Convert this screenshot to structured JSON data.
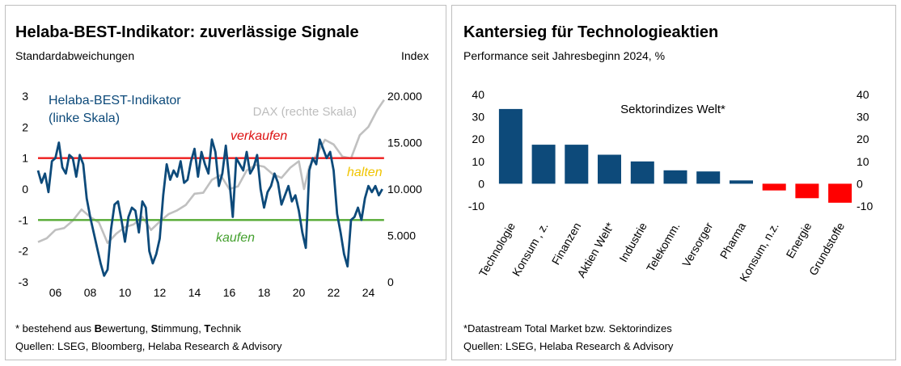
{
  "chart_data": [
    {
      "type": "line",
      "title": "Helaba-BEST-Indikator: zuverlässige Signale",
      "subtitle": "Standardabweichungen",
      "y2_unit_label": "Index",
      "xlabel": "",
      "x_ticks": [
        "06",
        "08",
        "10",
        "12",
        "14",
        "16",
        "18",
        "20",
        "22",
        "24"
      ],
      "ylim": [
        -3,
        3
      ],
      "y_ticks": [
        "3",
        "2",
        "1",
        "0",
        "-1",
        "-2",
        "-3"
      ],
      "y2lim": [
        0,
        20000
      ],
      "y2_ticks": [
        "20.000",
        "15.000",
        "10.000",
        "5.000",
        "0"
      ],
      "grid": false,
      "series": [
        {
          "name": "Helaba-BEST-Indikator (linke Skala)",
          "legend_lines": [
            "Helaba-BEST-Indikator",
            "(linke Skala)"
          ],
          "color": "#0d4a7a",
          "axis": "left",
          "x": [
            2005.0,
            2005.2,
            2005.4,
            2005.6,
            2005.8,
            2006.0,
            2006.2,
            2006.4,
            2006.6,
            2006.8,
            2007.0,
            2007.2,
            2007.4,
            2007.6,
            2007.8,
            2008.0,
            2008.2,
            2008.4,
            2008.6,
            2008.8,
            2009.0,
            2009.2,
            2009.4,
            2009.6,
            2009.8,
            2010.0,
            2010.2,
            2010.4,
            2010.6,
            2010.8,
            2011.0,
            2011.2,
            2011.4,
            2011.6,
            2011.8,
            2012.0,
            2012.2,
            2012.4,
            2012.6,
            2012.8,
            2013.0,
            2013.2,
            2013.4,
            2013.6,
            2013.8,
            2014.0,
            2014.2,
            2014.4,
            2014.6,
            2014.8,
            2015.0,
            2015.2,
            2015.4,
            2015.6,
            2015.8,
            2016.0,
            2016.2,
            2016.4,
            2016.6,
            2016.8,
            2017.0,
            2017.2,
            2017.4,
            2017.6,
            2017.8,
            2018.0,
            2018.2,
            2018.4,
            2018.6,
            2018.8,
            2019.0,
            2019.2,
            2019.4,
            2019.6,
            2019.8,
            2020.0,
            2020.2,
            2020.4,
            2020.6,
            2020.8,
            2021.0,
            2021.2,
            2021.4,
            2021.6,
            2021.8,
            2022.0,
            2022.2,
            2022.4,
            2022.6,
            2022.8,
            2023.0,
            2023.2,
            2023.4,
            2023.6,
            2023.8,
            2024.0,
            2024.2,
            2024.4,
            2024.6,
            2024.8
          ],
          "values": [
            0.6,
            0.2,
            0.5,
            -0.1,
            0.9,
            1.0,
            1.5,
            0.7,
            0.5,
            1.1,
            1.0,
            0.4,
            1.1,
            0.8,
            -0.3,
            -0.9,
            -1.4,
            -1.9,
            -2.4,
            -2.8,
            -2.6,
            -1.3,
            -0.5,
            -0.4,
            -1.0,
            -1.7,
            -0.9,
            -0.6,
            -0.7,
            -1.4,
            -0.4,
            -0.6,
            -2.0,
            -2.4,
            -2.1,
            -1.6,
            -0.2,
            0.8,
            0.3,
            0.6,
            0.4,
            0.9,
            0.2,
            0.3,
            0.9,
            1.3,
            0.4,
            1.2,
            0.8,
            0.5,
            1.6,
            1.2,
            0.1,
            0.5,
            1.4,
            0.3,
            -0.9,
            1.0,
            0.8,
            0.6,
            1.2,
            0.5,
            0.7,
            1.1,
            0.0,
            -0.6,
            -0.1,
            0.1,
            0.5,
            0.2,
            -0.5,
            -0.2,
            0.1,
            -0.4,
            -0.2,
            -0.7,
            -1.4,
            -1.9,
            0.6,
            1.0,
            0.8,
            1.6,
            1.3,
            1.0,
            1.2,
            0.6,
            -0.8,
            -1.4,
            -2.1,
            -2.5,
            -1.0,
            -0.9,
            -0.6,
            -1.0,
            -0.3,
            0.1,
            -0.1,
            0.1,
            -0.2,
            0.0
          ]
        },
        {
          "name": "DAX (rechte Skala)",
          "color": "#c0c0c0",
          "axis": "right",
          "x": [
            2005.0,
            2005.5,
            2006.0,
            2006.5,
            2007.0,
            2007.5,
            2008.0,
            2008.5,
            2009.0,
            2009.5,
            2010.0,
            2010.5,
            2011.0,
            2011.5,
            2012.0,
            2012.5,
            2013.0,
            2013.5,
            2014.0,
            2014.5,
            2015.0,
            2015.5,
            2016.0,
            2016.5,
            2017.0,
            2017.5,
            2018.0,
            2018.5,
            2019.0,
            2019.5,
            2020.0,
            2020.3,
            2020.6,
            2021.0,
            2021.5,
            2022.0,
            2022.5,
            2023.0,
            2023.5,
            2024.0,
            2024.5,
            2024.9
          ],
          "values": [
            4300,
            4700,
            5600,
            5800,
            6600,
            7800,
            7000,
            6400,
            4200,
            5200,
            5900,
            6200,
            7000,
            5600,
            6500,
            7300,
            7700,
            8300,
            9500,
            9600,
            11000,
            11500,
            10000,
            10300,
            12000,
            12600,
            12400,
            11600,
            11200,
            12300,
            13000,
            10000,
            12400,
            13600,
            15300,
            14800,
            13500,
            13300,
            15800,
            16700,
            18500,
            19600
          ]
        }
      ],
      "reference_lines": [
        {
          "label": "verkaufen",
          "value": 1,
          "color": "#ee1c1c",
          "label_color": "#dd1111"
        },
        {
          "label": "kaufen",
          "value": -1,
          "color": "#55aa33",
          "label_color": "#44a02e"
        }
      ],
      "annotations": [
        {
          "text": "halten",
          "color": "#f0c400"
        }
      ],
      "footnote": "* bestehend aus Bewertung, Stimmung, Technik",
      "footnote_parts": [
        {
          "t": "* bestehend aus ",
          "b": false
        },
        {
          "t": "B",
          "b": true
        },
        {
          "t": "ewertung, ",
          "b": false
        },
        {
          "t": "S",
          "b": true
        },
        {
          "t": "timmung, ",
          "b": false
        },
        {
          "t": "T",
          "b": true
        },
        {
          "t": "echnik",
          "b": false
        }
      ],
      "source": "Quellen: LSEG, Bloomberg, Helaba Research & Advisory"
    },
    {
      "type": "bar",
      "title": "Kantersieg für Technologieaktien",
      "subtitle": "Performance seit Jahresbeginn 2024, %",
      "inner_title": "Sektorindizes Welt*",
      "categories": [
        "Technologie",
        "Konsum , z.",
        "Finanzen",
        "Aktien Welt*",
        "Industrie",
        "Telekomm.",
        "Versorger",
        "Pharma",
        "Konsum, n.z.",
        "Energie",
        "Grundstoffe"
      ],
      "values": [
        33.5,
        17.5,
        17.5,
        13,
        10,
        6,
        5.5,
        1.5,
        -3,
        -6.5,
        -8.5
      ],
      "colors": {
        "positive": "#0d4a7a",
        "negative": "#ff0000"
      },
      "ylim": [
        -10,
        40
      ],
      "y_ticks": [
        "40",
        "30",
        "20",
        "10",
        "0",
        "-10"
      ],
      "grid": false,
      "footnote": "*Datastream Total Market bzw. Sektorindizes",
      "source": "Quellen: LSEG, Helaba Research & Advisory"
    }
  ]
}
